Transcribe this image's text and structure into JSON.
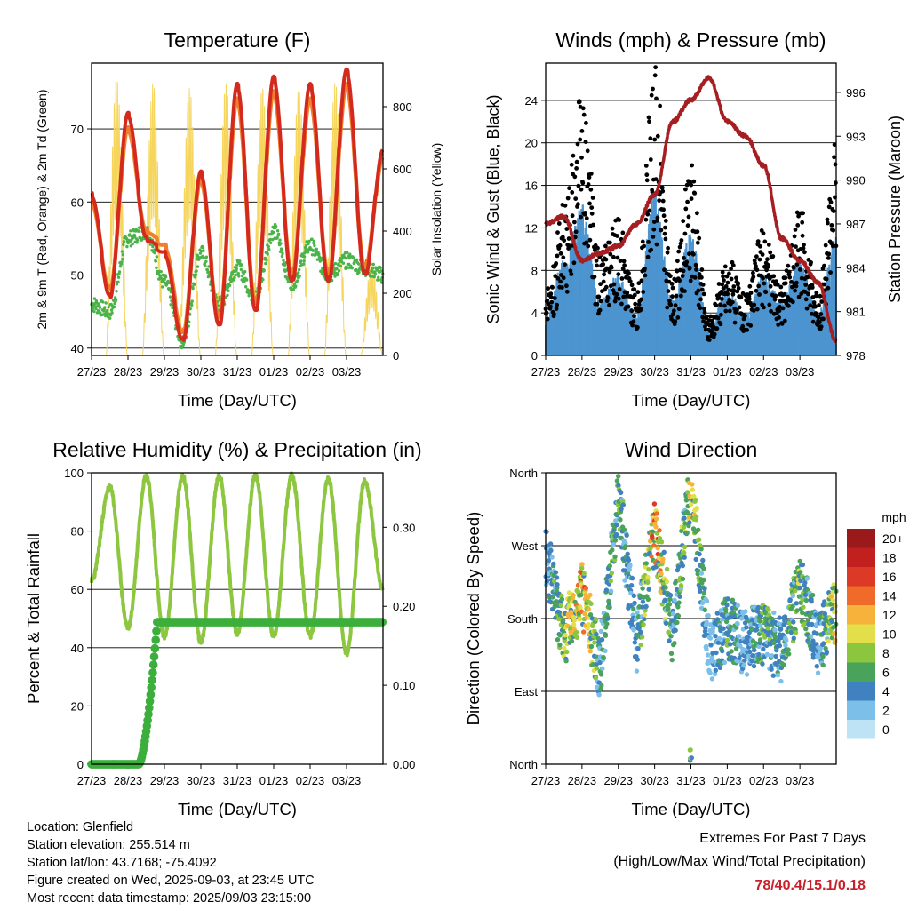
{
  "x_ticks": [
    "27/23",
    "28/23",
    "29/23",
    "30/23",
    "31/23",
    "01/23",
    "02/23",
    "03/23"
  ],
  "charts": {
    "temperature": {
      "title": "Temperature (F)",
      "xlabel": "Time (Day/UTC)",
      "ylabel_left": "2m & 9m T (Red, Orange) & 2m Td (Green)",
      "ylabel_right": "Solar Insolation (Yellow)"
    },
    "winds": {
      "title": "Winds (mph) & Pressure (mb)",
      "xlabel": "Time (Day/UTC)",
      "ylabel_left": "Sonic Wind & Gust (Blue, Black)",
      "ylabel_right": "Station Pressure (Maroon)"
    },
    "humidity": {
      "title": "Relative Humidity (%) & Precipitation (in)",
      "xlabel": "Time (Day/UTC)",
      "ylabel_left": "Percent & Total Rainfall"
    },
    "direction": {
      "title": "Wind Direction",
      "xlabel": "Time (Day/UTC)",
      "ylabel_left": "Direction (Colored By Speed)",
      "legend_title": "mph"
    }
  },
  "chart_data": [
    {
      "type": "line",
      "title": "Temperature (F)",
      "xlabel": "Time (Day/UTC)",
      "ylabel": "2m & 9m T (Red, Orange) & 2m Td (Green)",
      "y2label": "Solar Insolation (Yellow)",
      "x": [
        27,
        27.5,
        28,
        28.5,
        29,
        29.5,
        30,
        30.5,
        31,
        31.5,
        32,
        32.5,
        33,
        33.5,
        34,
        34.5,
        35
      ],
      "ylim": [
        39,
        79
      ],
      "yticks": [
        40,
        50,
        60,
        70
      ],
      "y2lim": [
        0,
        940
      ],
      "y2ticks": [
        0,
        200,
        400,
        600,
        800
      ],
      "series": [
        {
          "name": "2m T",
          "color": "#d42a1e",
          "values": [
            61,
            47,
            72,
            55,
            53,
            41,
            64,
            43,
            76,
            45,
            77,
            49,
            76,
            49,
            78,
            50,
            67
          ]
        },
        {
          "name": "9m T",
          "color": "#f07f2c",
          "values": [
            60,
            48,
            70,
            56,
            54,
            42,
            63,
            44,
            74,
            46,
            75,
            50,
            74,
            50,
            76,
            51,
            66
          ]
        },
        {
          "name": "2m Td",
          "color": "#4ab34a",
          "values": [
            46,
            45,
            55,
            56,
            49,
            41,
            53,
            46,
            51,
            47,
            56,
            49,
            54,
            50,
            52,
            51,
            50
          ]
        },
        {
          "name": "Solar Insolation",
          "color": "#f6d55c",
          "axis": "y2",
          "values": [
            0,
            0,
            900,
            0,
            880,
            0,
            860,
            0,
            880,
            0,
            870,
            0,
            860,
            0,
            880,
            0,
            300
          ]
        }
      ]
    },
    {
      "type": "scatter",
      "title": "Winds (mph) & Pressure (mb)",
      "xlabel": "Time (Day/UTC)",
      "ylabel": "Sonic Wind & Gust (Blue, Black)",
      "y2label": "Station Pressure (Maroon)",
      "x": [
        27,
        27.5,
        28,
        28.5,
        29,
        29.5,
        30,
        30.5,
        31,
        31.5,
        32,
        32.5,
        33,
        33.5,
        34,
        34.5,
        35
      ],
      "ylim": [
        0,
        27.5
      ],
      "yticks": [
        0,
        4,
        8,
        12,
        16,
        20,
        24
      ],
      "y2lim": [
        978,
        998
      ],
      "y2ticks": [
        978,
        981,
        984,
        987,
        990,
        993,
        996
      ],
      "series": [
        {
          "name": "Sonic Wind",
          "color": "#4d95d0",
          "values": [
            3,
            7,
            11,
            4,
            6,
            3,
            12,
            4,
            9,
            2,
            5,
            3,
            6,
            4,
            7,
            3,
            9
          ]
        },
        {
          "name": "Gust",
          "color": "#000000",
          "values": [
            5,
            12,
            21,
            8,
            11,
            5,
            23,
            6,
            15,
            3,
            8,
            5,
            10,
            6,
            12,
            5,
            17
          ]
        },
        {
          "name": "Station Pressure",
          "color": "#a51e22",
          "axis": "y2",
          "values": [
            987,
            987.5,
            984.5,
            985,
            985.5,
            987,
            989,
            994,
            995.5,
            997,
            994,
            993,
            991,
            986,
            984.5,
            983,
            979
          ]
        }
      ]
    },
    {
      "type": "line",
      "title": "Relative Humidity (%) & Precipitation (in)",
      "xlabel": "Time (Day/UTC)",
      "ylabel": "Percent & Total Rainfall",
      "x": [
        27,
        27.5,
        28,
        28.5,
        29,
        29.5,
        30,
        30.5,
        31,
        31.5,
        32,
        32.5,
        33,
        33.5,
        34,
        34.5,
        35
      ],
      "ylim": [
        0,
        100
      ],
      "yticks": [
        0,
        20,
        40,
        60,
        80,
        100
      ],
      "y2lim": [
        0,
        0.369
      ],
      "y2ticks": [
        0.0,
        0.1,
        0.2,
        0.3
      ],
      "y2tick_labels": [
        "0.00",
        "0.10",
        "0.20",
        "0.30"
      ],
      "series": [
        {
          "name": "Relative Humidity",
          "color": "#8dc63f",
          "values": [
            63,
            95,
            47,
            99,
            44,
            99,
            42,
            99,
            45,
            99,
            44,
            99,
            44,
            98,
            38,
            97,
            60
          ]
        },
        {
          "name": "Total Precipitation",
          "color": "#3cae3c",
          "axis": "y2",
          "values": [
            0,
            0,
            0,
            0.01,
            0.18,
            0.18,
            0.18,
            0.18,
            0.18,
            0.18,
            0.18,
            0.18,
            0.18,
            0.18,
            0.18,
            0.18,
            0.18
          ]
        }
      ]
    },
    {
      "type": "scatter",
      "title": "Wind Direction",
      "xlabel": "Time (Day/UTC)",
      "ylabel": "Direction (Colored By Speed)",
      "yticks": [
        0,
        90,
        180,
        270,
        360
      ],
      "ytick_labels": [
        "North",
        "East",
        "South",
        "West",
        "North"
      ],
      "colorbar": {
        "title": "mph",
        "labels": [
          "0",
          "2",
          "4",
          "6",
          "8",
          "10",
          "12",
          "14",
          "16",
          "18",
          "20+"
        ],
        "colors": [
          "#bde3f5",
          "#7cbfe8",
          "#3f82bf",
          "#49a35a",
          "#8cc63f",
          "#e3df4a",
          "#f7b23b",
          "#f06b2a",
          "#dc3a27",
          "#c2201f",
          "#9a1a1c"
        ]
      },
      "x": [
        27,
        27.5,
        28,
        28.5,
        29,
        29.5,
        30,
        30.5,
        31,
        31.5,
        32,
        32.5,
        33,
        33.5,
        34,
        34.5,
        35
      ],
      "series": [
        {
          "name": "Direction",
          "values": [
            260,
            160,
            210,
            120,
            330,
            150,
            290,
            160,
            350,
            140,
            170,
            150,
            160,
            140,
            220,
            150,
            190
          ]
        }
      ]
    }
  ],
  "info": {
    "location": "Location: Glenfield",
    "elevation": "Station elevation: 255.514 m",
    "latlon": "Station lat/lon: 43.7168; -75.4092",
    "created": "Figure created on Wed, 2025-09-03, at 23:45 UTC",
    "recent": "Most recent data timestamp: 2025/09/03 23:15:00"
  },
  "extremes": {
    "line1": "Extremes For Past 7 Days",
    "line2": "(High/Low/Max Wind/Total Precipitation)",
    "values": "78/40.4/15.1/0.18"
  }
}
